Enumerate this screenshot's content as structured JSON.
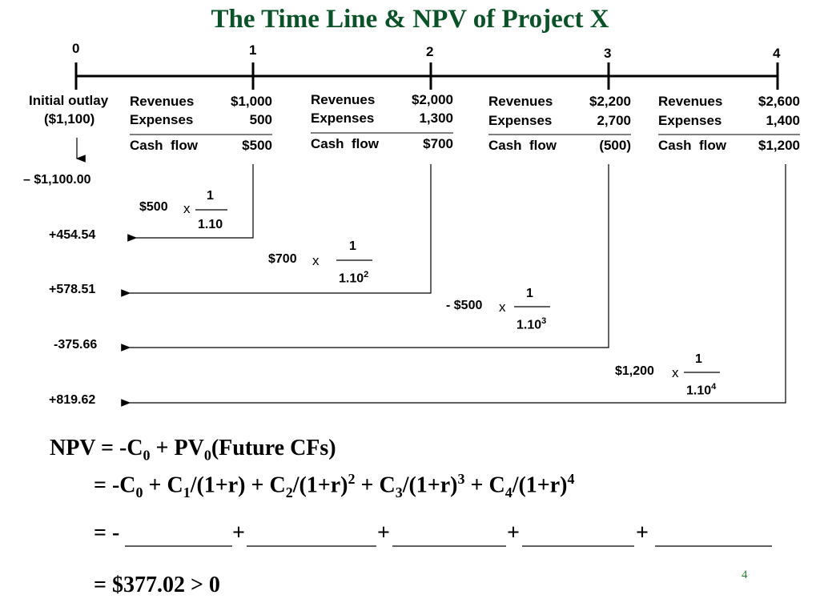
{
  "title": "The Time Line & NPV of Project X",
  "periods": [
    "0",
    "1",
    "2",
    "3",
    "4"
  ],
  "initial_outlay": {
    "label": "Initial outlay",
    "value": "($1,100)"
  },
  "years": [
    {
      "rev_label": "Revenues",
      "rev": "$1,000",
      "exp_label": "Expenses",
      "exp": "500",
      "cf_label": "Cash  flow",
      "cf": "$500"
    },
    {
      "rev_label": "Revenues",
      "rev": "$2,000",
      "exp_label": "Expenses",
      "exp": "1,300",
      "cf_label": "Cash  flow",
      "cf": "$700"
    },
    {
      "rev_label": "Revenues",
      "rev": "$2,200",
      "exp_label": "Expenses",
      "exp": "2,700",
      "cf_label": "Cash  flow",
      "cf": "(500)"
    },
    {
      "rev_label": "Revenues",
      "rev": "$2,600",
      "exp_label": "Expenses",
      "exp": "1,400",
      "cf_label": "Cash  flow",
      "cf": "$1,200"
    }
  ],
  "pv_values": [
    "– $1,100.00",
    "+454.54",
    "+578.51",
    "-375.66",
    "+819.62"
  ],
  "discount_terms": [
    {
      "amount": "$500",
      "x": "x",
      "num": "1",
      "den": "1.10",
      "exp": ""
    },
    {
      "amount": "$700",
      "x": "x",
      "num": "1",
      "den": "1.10",
      "exp": "2"
    },
    {
      "amount": "- $500",
      "x": "x",
      "num": "1",
      "den": "1.10",
      "exp": "3"
    },
    {
      "amount": "$1,200",
      "x": "x",
      "num": "1",
      "den": "1.10",
      "exp": "4"
    }
  ],
  "npv": {
    "line1": {
      "a": "NPV = -C",
      "a_sub": "0",
      "b": " + PV",
      "b_sub": "0",
      "c": "(Future CFs)"
    },
    "line2": {
      "p1": "= -C",
      "s1": "0",
      "p2": " + C",
      "s2": "1",
      "p3": "/(1+r) + C",
      "s3": "2",
      "p4": "/(1+r)",
      "e1": "2",
      "p5": " + C",
      "s4": "3",
      "p6": "/(1+r)",
      "e2": "3",
      "p7": " + C",
      "s5": "4",
      "p8": "/(1+r)",
      "e3": "4"
    },
    "line3_prefix": "= -",
    "line3_plus": "+",
    "line4": "= $377.02 > 0"
  },
  "page_number": "4"
}
